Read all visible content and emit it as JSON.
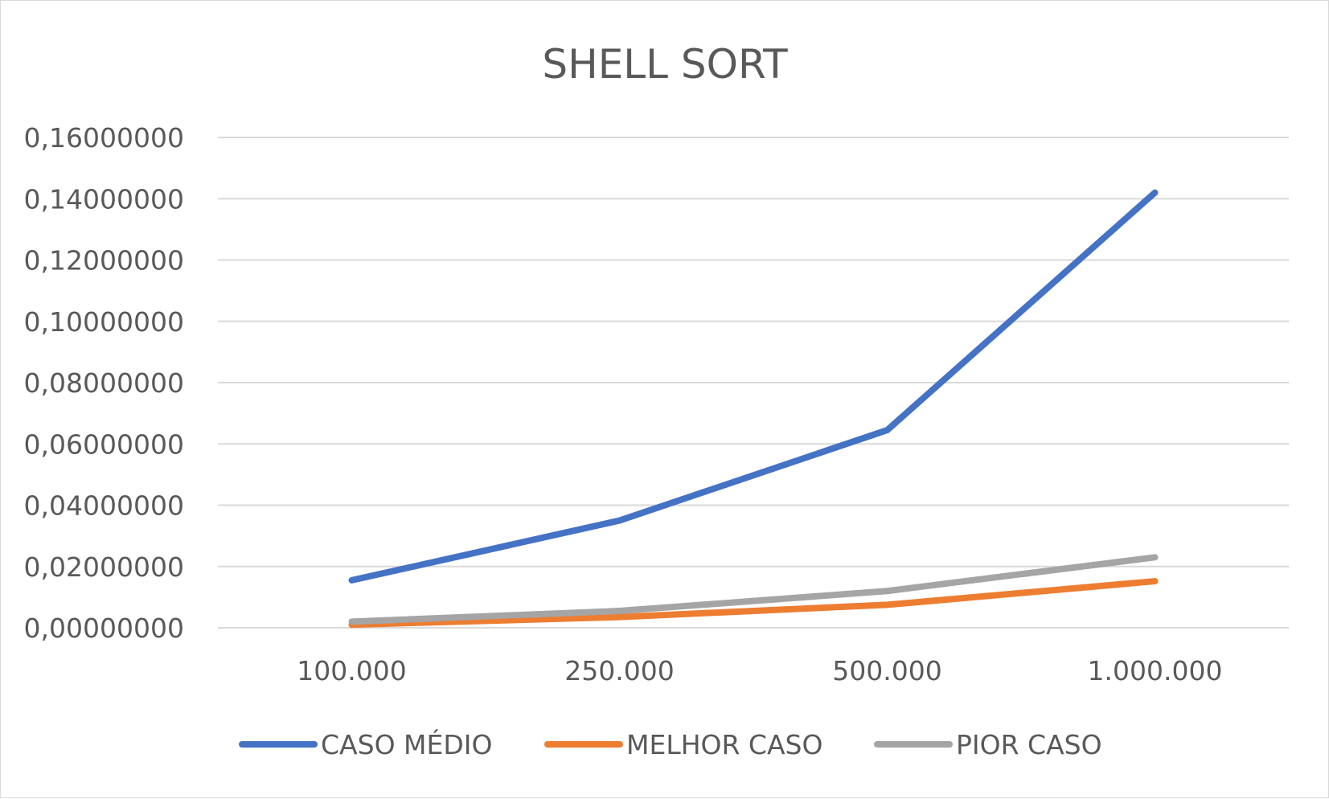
{
  "chart_data": {
    "type": "line",
    "title": "SHELL SORT",
    "xlabel": "",
    "ylabel": "",
    "categories": [
      "100.000",
      "250.000",
      "500.000",
      "1.000.000"
    ],
    "y_ticks": [
      "0,00000000",
      "0,02000000",
      "0,04000000",
      "0,06000000",
      "0,08000000",
      "0,10000000",
      "0,12000000",
      "0,14000000",
      "0,16000000"
    ],
    "ylim": [
      0,
      0.16
    ],
    "grid": true,
    "legend_position": "bottom",
    "series": [
      {
        "name": "CASO MÉDIO",
        "color": "#4472c4",
        "values": [
          0.0155,
          0.035,
          0.0645,
          0.142
        ]
      },
      {
        "name": "MELHOR CASO",
        "color": "#ed7d31",
        "values": [
          0.001,
          0.0035,
          0.0075,
          0.0152
        ]
      },
      {
        "name": "PIOR CASO",
        "color": "#a5a5a5",
        "values": [
          0.002,
          0.0055,
          0.012,
          0.023
        ]
      }
    ]
  }
}
